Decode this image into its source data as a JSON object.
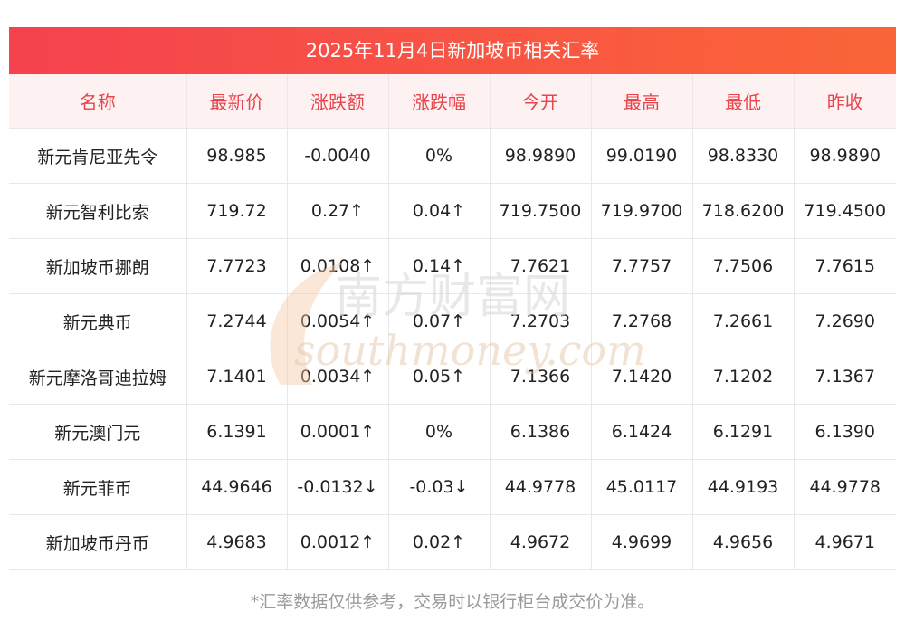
{
  "title": "2025年11月4日新加坡币相关汇率",
  "columns": [
    "名称",
    "最新价",
    "涨跌额",
    "涨跌幅",
    "今开",
    "最高",
    "最低",
    "昨收"
  ],
  "rows": [
    {
      "name": "新元肯尼亚先令",
      "latest": "98.985",
      "change": "-0.0040",
      "pct": "0%",
      "open": "98.9890",
      "high": "99.0190",
      "low": "98.8330",
      "prev": "98.9890",
      "trend": "flat",
      "pct_trend": "flat"
    },
    {
      "name": "新元智利比索",
      "latest": "719.72",
      "change": "0.27↑",
      "pct": "0.04↑",
      "open": "719.7500",
      "high": "719.9700",
      "low": "718.6200",
      "prev": "719.4500",
      "trend": "up",
      "pct_trend": "up"
    },
    {
      "name": "新加坡币挪朗",
      "latest": "7.7723",
      "change": "0.0108↑",
      "pct": "0.14↑",
      "open": "7.7621",
      "high": "7.7757",
      "low": "7.7506",
      "prev": "7.7615",
      "trend": "up",
      "pct_trend": "up"
    },
    {
      "name": "新元典币",
      "latest": "7.2744",
      "change": "0.0054↑",
      "pct": "0.07↑",
      "open": "7.2703",
      "high": "7.2768",
      "low": "7.2661",
      "prev": "7.2690",
      "trend": "up",
      "pct_trend": "up"
    },
    {
      "name": "新元摩洛哥迪拉姆",
      "latest": "7.1401",
      "change": "0.0034↑",
      "pct": "0.05↑",
      "open": "7.1366",
      "high": "7.1420",
      "low": "7.1202",
      "prev": "7.1367",
      "trend": "up",
      "pct_trend": "up"
    },
    {
      "name": "新元澳门元",
      "latest": "6.1391",
      "change": "0.0001↑",
      "pct": "0%",
      "open": "6.1386",
      "high": "6.1424",
      "low": "6.1291",
      "prev": "6.1390",
      "trend": "up",
      "pct_trend": "flat"
    },
    {
      "name": "新元菲币",
      "latest": "44.9646",
      "change": "-0.0132↓",
      "pct": "-0.03↓",
      "open": "44.9778",
      "high": "45.0117",
      "low": "44.9193",
      "prev": "44.9778",
      "trend": "down",
      "pct_trend": "down"
    },
    {
      "name": "新加坡币丹币",
      "latest": "4.9683",
      "change": "0.0012↑",
      "pct": "0.02↑",
      "open": "4.9672",
      "high": "4.9699",
      "low": "4.9656",
      "prev": "4.9671",
      "trend": "up",
      "pct_trend": "up"
    }
  ],
  "footnote": "*汇率数据仅供参考，交易时以银行柜台成交价为准。",
  "watermark": {
    "cn": "南方财富网",
    "en": "southmoney.com"
  },
  "colors": {
    "header_bg_start": "#f5424f",
    "header_bg_end": "#fb6538",
    "up": "#ea2b2b",
    "down": "#16930f",
    "column_header": "#e8454c"
  }
}
